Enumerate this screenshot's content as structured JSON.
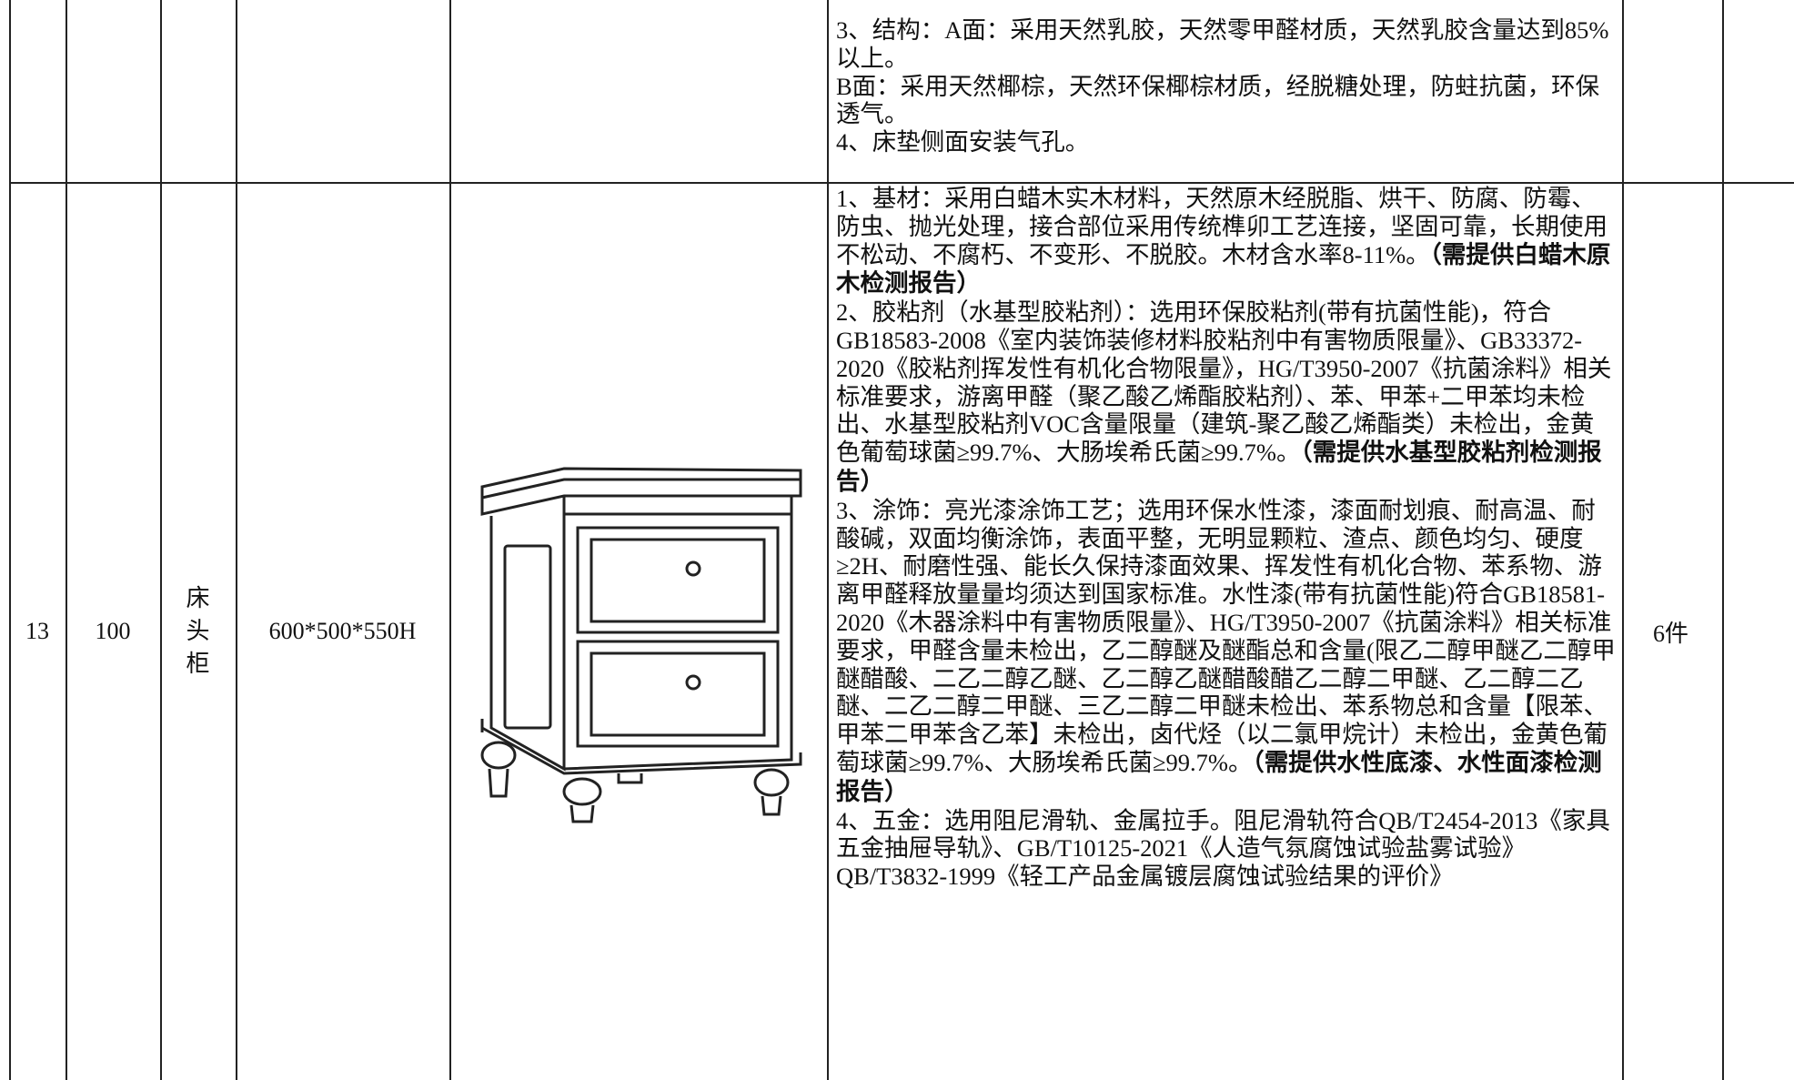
{
  "table": {
    "rows": [
      {
        "description": [
          {
            "text": "3、结构：A面：采用天然乳胶，天然零甲醛材质，天然乳胶含量达到85%以上。"
          },
          {
            "text": "B面：采用天然椰棕，天然环保椰棕材质，经脱糖处理，防蛀抗菌，环保透气。"
          },
          {
            "text": "4、床垫侧面安装气孔。"
          }
        ]
      },
      {
        "index": "13",
        "quantity": "100",
        "name": "床头柜",
        "size": "600*500*550H",
        "description": [
          {
            "text": "1、基材：采用白蜡木实木材料，天然原木经脱脂、烘干、防腐、防霉、防虫、抛光处理，接合部位采用传统榫卯工艺连接，坚固可靠，长期使用不松动、不腐朽、不变形、不脱胶。木材含水率8-11%。",
            "note": "（需提供白蜡木原木检测报告）"
          },
          {
            "text": "2、胶粘剂（水基型胶粘剂）：选用环保胶粘剂(带有抗菌性能)，符合GB18583-2008《室内装饰装修材料胶粘剂中有害物质限量》、GB33372-2020《胶粘剂挥发性有机化合物限量》，HG/T3950-2007《抗菌涂料》相关标准要求，游离甲醛（聚乙酸乙烯酯胶粘剂）、苯、甲苯+二甲苯均未检出、水基型胶粘剂VOC含量限量（建筑-聚乙酸乙烯酯类）未检出，金黄色葡萄球菌≥99.7%、大肠埃希氏菌≥99.7%。",
            "note": "（需提供水基型胶粘剂检测报告）"
          },
          {
            "text": "3、涂饰：亮光漆涂饰工艺；选用环保水性漆，漆面耐划痕、耐高温、耐酸碱，双面均衡涂饰，表面平整，无明显颗粒、渣点、颜色均匀、硬度≥2H、耐磨性强、能长久保持漆面效果、挥发性有机化合物、苯系物、游离甲醛释放量量均须达到国家标准。水性漆(带有抗菌性能)符合GB18581-2020《木器涂料中有害物质限量》、HG/T3950-2007《抗菌涂料》相关标准要求，甲醛含量未检出，乙二醇醚及醚酯总和含量(限乙二醇甲醚乙二醇甲醚醋酸、二乙二醇乙醚、乙二醇乙醚醋酸醋乙二醇二甲醚、乙二醇二乙醚、二乙二醇二甲醚、三乙二醇二甲醚未检出、苯系物总和含量【限苯、甲苯二甲苯含乙苯】未检出，卤代烃（以二氯甲烷计）未检出，金黄色葡萄球菌≥99.7%、大肠埃希氏菌≥99.7%。",
            "note": "（需提供水性底漆、水性面漆检测报告）"
          },
          {
            "text": "4、五金：选用阻尼滑轨、金属拉手。阻尼滑轨符合QB/T2454-2013《家具五金抽屉导轨》、GB/T10125-2021《人造气氛腐蚀试验盐雾试验》QB/T3832-1999《轻工产品金属镀层腐蚀试验结果的评价》"
          }
        ],
        "amount": "6件"
      }
    ]
  }
}
